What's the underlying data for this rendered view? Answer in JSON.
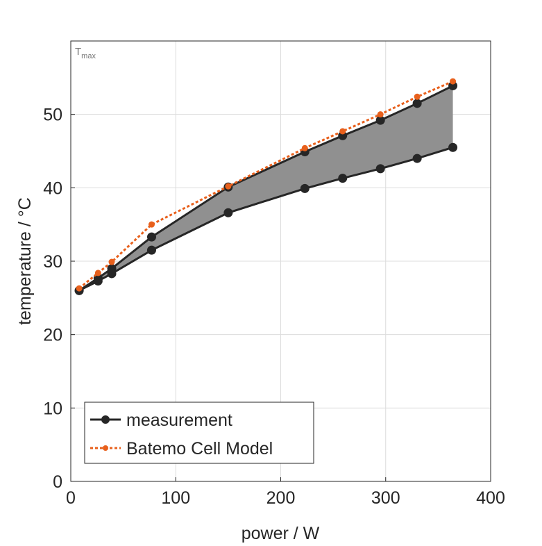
{
  "chart_data": {
    "type": "line",
    "annotation": "T",
    "annotation_sub": "max",
    "xlabel": "power / W",
    "ylabel": "temperature / °C",
    "xlim": [
      0,
      400
    ],
    "ylim": [
      0,
      60
    ],
    "xticks": [
      0,
      100,
      200,
      300,
      400
    ],
    "yticks": [
      0,
      10,
      20,
      30,
      40,
      50
    ],
    "grid": true,
    "legend_position": "bottom-left",
    "x": [
      8,
      26,
      39,
      77,
      150,
      223,
      259,
      295,
      330,
      364
    ],
    "series": [
      {
        "name": "measurement",
        "role": "upper",
        "color": "#262626",
        "values": [
          26.0,
          27.7,
          29.0,
          33.3,
          40.1,
          44.9,
          47.1,
          49.2,
          51.5,
          53.9
        ]
      },
      {
        "name": "measurement",
        "role": "lower",
        "color": "#262626",
        "values": [
          26.0,
          27.3,
          28.3,
          31.5,
          36.6,
          39.9,
          41.3,
          42.6,
          44.0,
          45.5
        ]
      },
      {
        "name": "Batemo Cell Model",
        "color": "#e8601c",
        "values": [
          26.3,
          28.4,
          29.9,
          35.0,
          40.2,
          45.4,
          47.7,
          50.0,
          52.4,
          54.5
        ]
      }
    ],
    "fill_color": "#909090",
    "legend": [
      "measurement",
      "Batemo Cell Model"
    ]
  }
}
